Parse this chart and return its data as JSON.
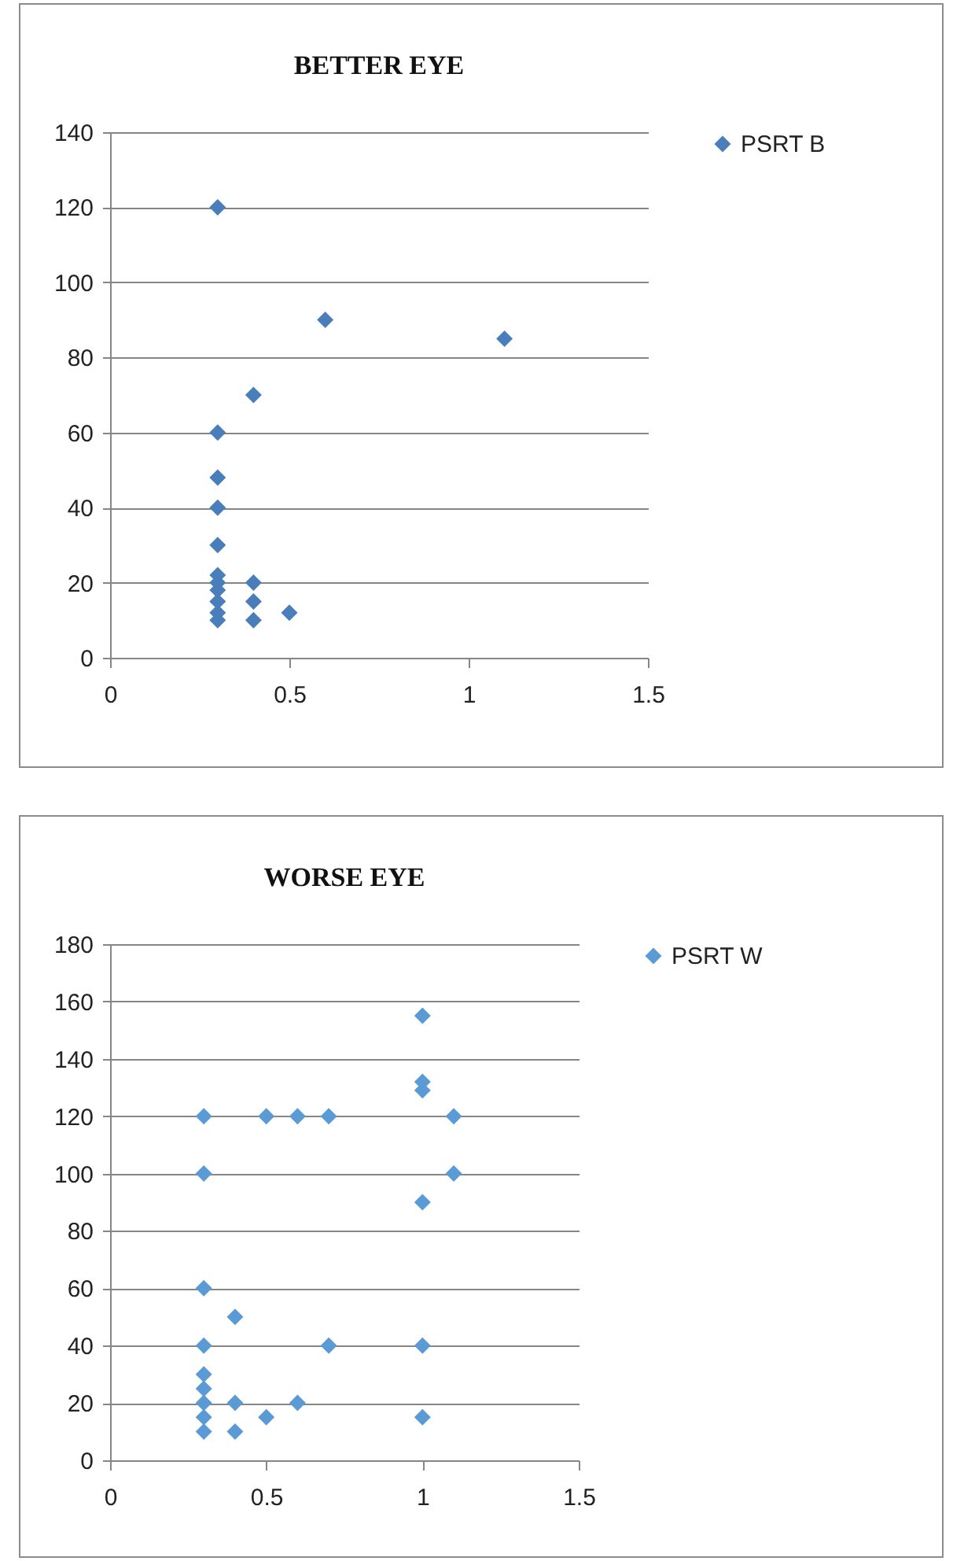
{
  "chart_data": [
    {
      "type": "scatter",
      "title": "BETTER EYE",
      "xlim": [
        0,
        1.5
      ],
      "xticks": [
        0,
        0.5,
        1,
        1.5
      ],
      "ylim": [
        0,
        140
      ],
      "yticks": [
        0,
        20,
        40,
        60,
        80,
        100,
        120,
        140
      ],
      "grid": "y",
      "legend": "right",
      "marker": "diamond",
      "series": [
        {
          "name": "PSRT B",
          "color": "#4a7ebb",
          "x": [
            0.3,
            0.6,
            1.1,
            0.4,
            0.3,
            0.3,
            0.3,
            0.3,
            0.3,
            0.3,
            0.3,
            0.3,
            0.3,
            0.3,
            0.4,
            0.4,
            0.4,
            0.5
          ],
          "values": [
            120,
            90,
            85,
            70,
            60,
            48,
            40,
            30,
            22,
            20,
            18,
            15,
            12,
            10,
            20,
            15,
            10,
            12
          ]
        }
      ]
    },
    {
      "type": "scatter",
      "title": "WORSE EYE",
      "xlim": [
        0,
        1.5
      ],
      "xticks": [
        0,
        0.5,
        1,
        1.5
      ],
      "ylim": [
        0,
        180
      ],
      "yticks": [
        0,
        20,
        40,
        60,
        80,
        100,
        120,
        140,
        160,
        180
      ],
      "grid": "y",
      "legend": "right",
      "marker": "diamond",
      "series": [
        {
          "name": "PSRT W",
          "color": "#5b9bd5",
          "x": [
            0.3,
            0.5,
            0.6,
            0.7,
            1,
            1,
            1,
            1.1,
            0.3,
            1.1,
            1,
            0.3,
            0.4,
            0.3,
            0.7,
            1,
            0.3,
            0.3,
            0.3,
            0.3,
            0.3,
            0.4,
            0.4,
            0.5,
            0.6,
            1
          ],
          "values": [
            120,
            120,
            120,
            120,
            155,
            132,
            129,
            120,
            100,
            100,
            90,
            60,
            50,
            40,
            40,
            40,
            30,
            25,
            20,
            15,
            10,
            20,
            10,
            15,
            20,
            15
          ]
        }
      ]
    }
  ]
}
